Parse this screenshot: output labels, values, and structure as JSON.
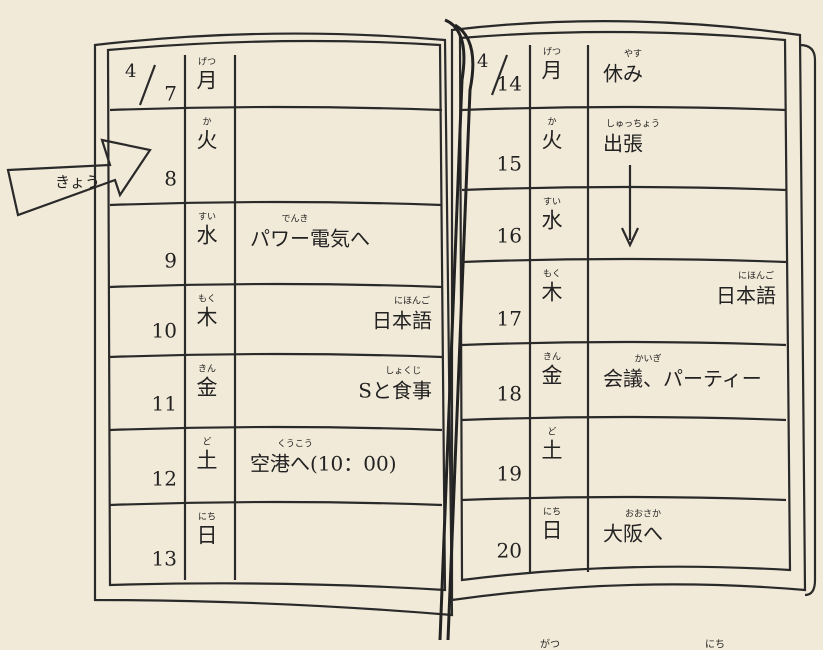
{
  "arrow_label": "きょう",
  "pages": [
    {
      "month": "4",
      "rows": [
        {
          "date": "7",
          "weekday": "月",
          "weekday_ruby": "げつ"
        },
        {
          "date": "8",
          "weekday": "火",
          "weekday_ruby": "か"
        },
        {
          "date": "9",
          "weekday": "水",
          "weekday_ruby": "すい",
          "entry": "パワー電気へ",
          "entry_ruby": "でんき"
        },
        {
          "date": "10",
          "weekday": "木",
          "weekday_ruby": "もく",
          "entry": "日本語",
          "entry_ruby": "にほんご"
        },
        {
          "date": "11",
          "weekday": "金",
          "weekday_ruby": "きん",
          "entry": "Sと食事",
          "entry_ruby": "しょくじ"
        },
        {
          "date": "12",
          "weekday": "土",
          "weekday_ruby": "ど",
          "entry": "空港へ(10：00)",
          "entry_ruby": "くうこう"
        },
        {
          "date": "13",
          "weekday": "日",
          "weekday_ruby": "にち"
        }
      ]
    },
    {
      "month": "4",
      "rows": [
        {
          "date": "14",
          "weekday": "月",
          "weekday_ruby": "げつ",
          "entry": "休み",
          "entry_ruby": "やす"
        },
        {
          "date": "15",
          "weekday": "火",
          "weekday_ruby": "か",
          "entry": "出張",
          "entry_ruby": "しゅっちょう"
        },
        {
          "date": "16",
          "weekday": "水",
          "weekday_ruby": "すい"
        },
        {
          "date": "17",
          "weekday": "木",
          "weekday_ruby": "もく",
          "entry": "日本語",
          "entry_ruby": "にほんご"
        },
        {
          "date": "18",
          "weekday": "金",
          "weekday_ruby": "きん",
          "entry": "会議、パーティー",
          "entry_ruby": "かいぎ"
        },
        {
          "date": "19",
          "weekday": "土",
          "weekday_ruby": "ど"
        },
        {
          "date": "20",
          "weekday": "日",
          "weekday_ruby": "にち",
          "entry": "大阪へ",
          "entry_ruby": "おおさか"
        }
      ]
    }
  ],
  "footer": [
    "がつ",
    "にち"
  ]
}
